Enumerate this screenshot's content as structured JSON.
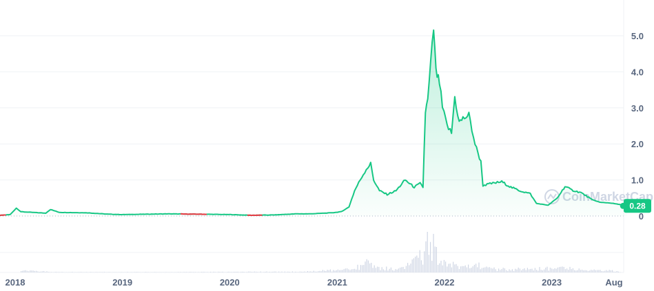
{
  "chart_data": {
    "type": "area",
    "title": "",
    "xlabel": "",
    "ylabel": "",
    "ylim": [
      0,
      5.5
    ],
    "grid": true,
    "y_ticks": [
      "0",
      "1.0",
      "2.0",
      "3.0",
      "4.0",
      "5.0"
    ],
    "x_tick_labels": [
      {
        "label": "2018",
        "date": "2018-01-01"
      },
      {
        "label": "2019",
        "date": "2019-01-01"
      },
      {
        "label": "2020",
        "date": "2020-01-01"
      },
      {
        "label": "2021",
        "date": "2021-01-01"
      },
      {
        "label": "2022",
        "date": "2022-01-01"
      },
      {
        "label": "2023",
        "date": "2023-01-01"
      },
      {
        "label": "Aug",
        "date": "2023-08-01"
      }
    ],
    "x_start": "2017-09-01",
    "x_end": "2023-10-01",
    "current_price_label": "0.28",
    "watermark": "CoinMarketCap",
    "colors": {
      "up": "#16c784",
      "down": "#ea3943",
      "grid": "#eff2f5",
      "volume": "#cfd6e4",
      "tick_text": "#58667e"
    },
    "price_series": [
      [
        "2017-09-01",
        0.02
      ],
      [
        "2017-11-15",
        0.02
      ],
      [
        "2017-12-15",
        0.04
      ],
      [
        "2018-01-05",
        0.22
      ],
      [
        "2018-01-20",
        0.12
      ],
      [
        "2018-03-01",
        0.1
      ],
      [
        "2018-04-15",
        0.08
      ],
      [
        "2018-05-01",
        0.18
      ],
      [
        "2018-06-01",
        0.1
      ],
      [
        "2018-09-01",
        0.09
      ],
      [
        "2018-11-15",
        0.05
      ],
      [
        "2019-01-01",
        0.04
      ],
      [
        "2019-06-01",
        0.06
      ],
      [
        "2019-10-01",
        0.05
      ],
      [
        "2020-01-01",
        0.04
      ],
      [
        "2020-03-15",
        0.02
      ],
      [
        "2020-06-01",
        0.03
      ],
      [
        "2020-08-15",
        0.06
      ],
      [
        "2020-10-01",
        0.06
      ],
      [
        "2020-12-15",
        0.09
      ],
      [
        "2021-01-15",
        0.12
      ],
      [
        "2021-02-10",
        0.25
      ],
      [
        "2021-03-01",
        0.7
      ],
      [
        "2021-03-20",
        1.0
      ],
      [
        "2021-04-10",
        1.3
      ],
      [
        "2021-04-25",
        1.45
      ],
      [
        "2021-05-05",
        1.0
      ],
      [
        "2021-05-25",
        0.7
      ],
      [
        "2021-06-20",
        0.6
      ],
      [
        "2021-07-20",
        0.7
      ],
      [
        "2021-08-20",
        1.0
      ],
      [
        "2021-09-20",
        0.8
      ],
      [
        "2021-10-10",
        0.9
      ],
      [
        "2021-10-20",
        0.8
      ],
      [
        "2021-10-28",
        2.9
      ],
      [
        "2021-11-05",
        3.2
      ],
      [
        "2021-11-15",
        4.2
      ],
      [
        "2021-11-25",
        5.2
      ],
      [
        "2021-12-03",
        4.0
      ],
      [
        "2021-12-15",
        3.7
      ],
      [
        "2021-12-25",
        3.0
      ],
      [
        "2022-01-10",
        2.5
      ],
      [
        "2022-01-25",
        2.3
      ],
      [
        "2022-02-05",
        3.3
      ],
      [
        "2022-02-20",
        2.6
      ],
      [
        "2022-03-05",
        2.7
      ],
      [
        "2022-03-25",
        2.8
      ],
      [
        "2022-04-15",
        2.0
      ],
      [
        "2022-05-05",
        1.5
      ],
      [
        "2022-05-12",
        0.85
      ],
      [
        "2022-06-10",
        0.9
      ],
      [
        "2022-07-15",
        0.95
      ],
      [
        "2022-08-15",
        0.8
      ],
      [
        "2022-09-15",
        0.7
      ],
      [
        "2022-10-20",
        0.62
      ],
      [
        "2022-11-10",
        0.35
      ],
      [
        "2022-12-20",
        0.3
      ],
      [
        "2023-01-20",
        0.5
      ],
      [
        "2023-02-15",
        0.82
      ],
      [
        "2023-03-10",
        0.72
      ],
      [
        "2023-04-10",
        0.65
      ],
      [
        "2023-05-20",
        0.45
      ],
      [
        "2023-06-15",
        0.38
      ],
      [
        "2023-07-20",
        0.36
      ],
      [
        "2023-08-20",
        0.32
      ],
      [
        "2023-09-15",
        0.28
      ]
    ],
    "down_segments": [
      [
        "2017-09-01",
        "2017-12-01"
      ],
      [
        "2019-07-15",
        "2019-10-15"
      ],
      [
        "2020-03-01",
        "2020-04-25"
      ]
    ],
    "volume_series": [
      [
        "2017-12-15",
        0.02
      ],
      [
        "2018-01-10",
        0.05
      ],
      [
        "2018-06-01",
        0.01
      ],
      [
        "2019-06-01",
        0.01
      ],
      [
        "2020-08-15",
        0.02
      ],
      [
        "2021-02-15",
        0.08
      ],
      [
        "2021-03-15",
        0.15
      ],
      [
        "2021-04-10",
        0.25
      ],
      [
        "2021-04-25",
        0.18
      ],
      [
        "2021-05-20",
        0.12
      ],
      [
        "2021-08-15",
        0.1
      ],
      [
        "2021-10-28",
        0.55
      ],
      [
        "2021-11-05",
        1.0
      ],
      [
        "2021-11-15",
        0.6
      ],
      [
        "2021-11-25",
        0.7
      ],
      [
        "2021-12-10",
        0.35
      ],
      [
        "2022-01-10",
        0.15
      ],
      [
        "2022-02-05",
        0.22
      ],
      [
        "2022-03-15",
        0.15
      ],
      [
        "2022-05-12",
        0.2
      ],
      [
        "2022-07-01",
        0.08
      ],
      [
        "2022-11-10",
        0.1
      ],
      [
        "2023-02-15",
        0.12
      ],
      [
        "2023-05-01",
        0.06
      ],
      [
        "2023-08-15",
        0.04
      ]
    ]
  }
}
